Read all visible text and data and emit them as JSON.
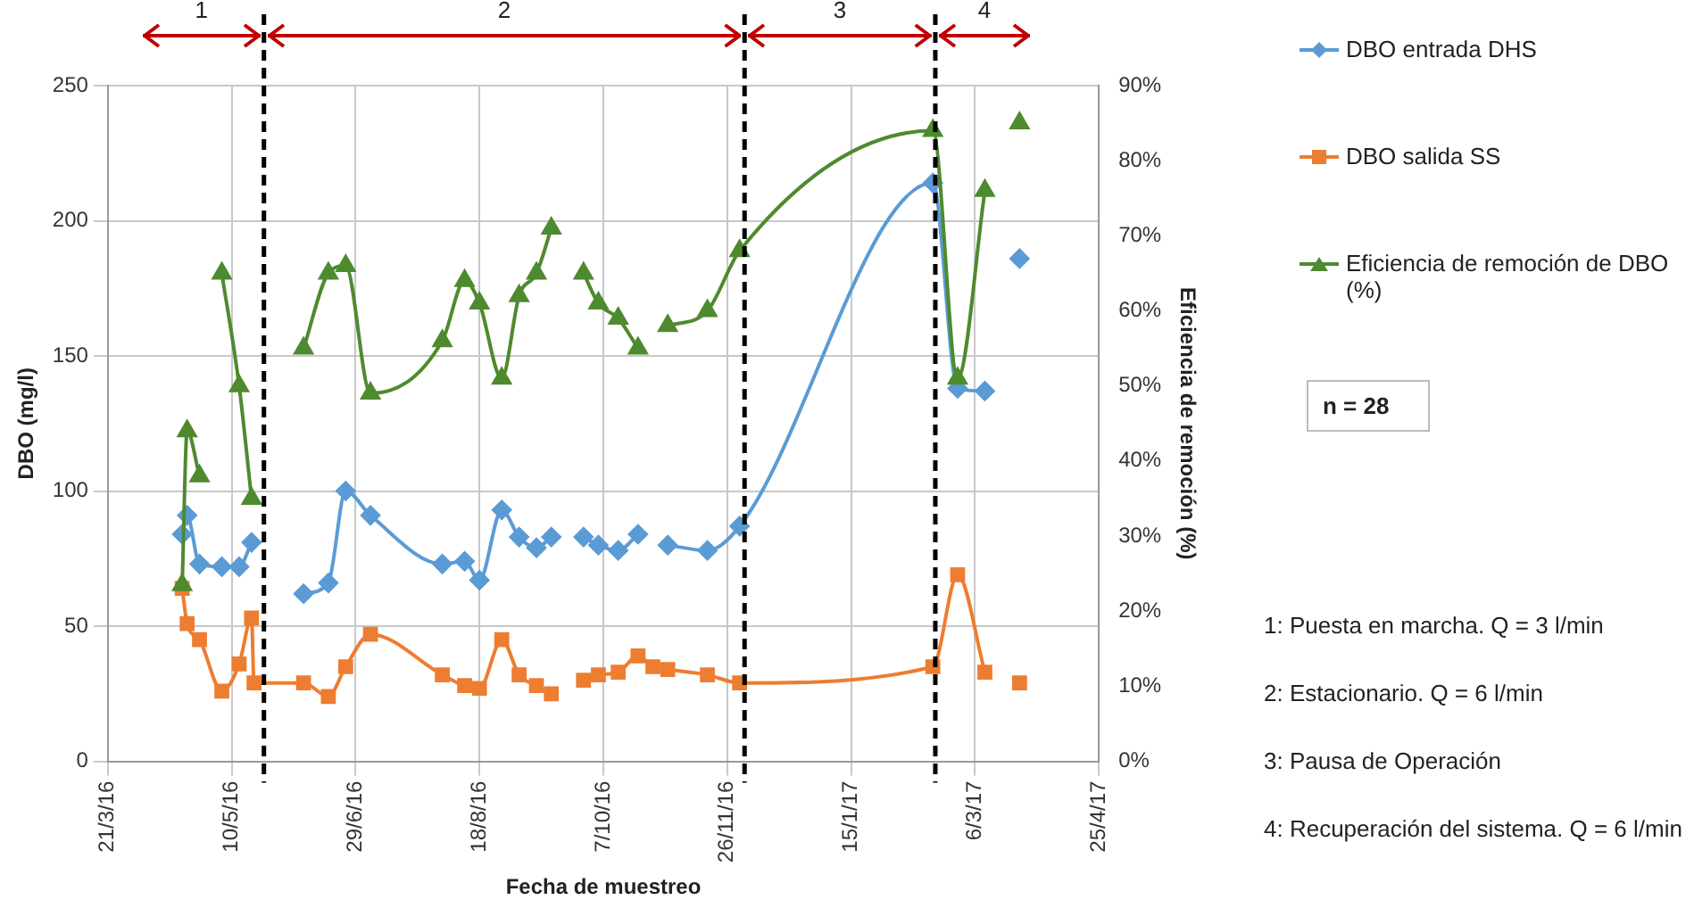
{
  "chart_data": {
    "type": "line",
    "xlabel": "Fecha de muestreo",
    "ylabel": "DBO (mg/l)",
    "y2label": "Eficiencia de remoción (%)",
    "xlim": [
      "2016-03-21",
      "2017-04-25"
    ],
    "xticks": [
      {
        "value": "2016-03-21",
        "label": "21/3/16"
      },
      {
        "value": "2016-05-10",
        "label": "10/5/16"
      },
      {
        "value": "2016-06-29",
        "label": "29/6/16"
      },
      {
        "value": "2016-08-18",
        "label": "18/8/16"
      },
      {
        "value": "2016-10-07",
        "label": "7/10/16"
      },
      {
        "value": "2016-11-26",
        "label": "26/11/16"
      },
      {
        "value": "2017-01-15",
        "label": "15/1/17"
      },
      {
        "value": "2017-03-06",
        "label": "6/3/17"
      },
      {
        "value": "2017-04-25",
        "label": "25/4/17"
      }
    ],
    "ylim": [
      0,
      250
    ],
    "yticks": [
      0,
      50,
      100,
      150,
      200,
      250
    ],
    "y2lim": [
      0,
      90
    ],
    "y2ticks": [
      {
        "value": 0,
        "label": "0%"
      },
      {
        "value": 10,
        "label": "10%"
      },
      {
        "value": 20,
        "label": "20%"
      },
      {
        "value": 30,
        "label": "30%"
      },
      {
        "value": 40,
        "label": "40%"
      },
      {
        "value": 50,
        "label": "50%"
      },
      {
        "value": 60,
        "label": "60%"
      },
      {
        "value": 70,
        "label": "70%"
      },
      {
        "value": 80,
        "label": "80%"
      },
      {
        "value": 90,
        "label": "90%"
      }
    ],
    "grid": true,
    "legend": "right",
    "series": [
      {
        "name": "DBO entrada DHS",
        "color": "#5b9bd5",
        "marker": "diamond",
        "x": [
          "2016-04-20",
          "2016-04-22",
          "2016-04-27",
          "2016-05-06",
          "2016-05-13",
          "2016-05-18"
        ],
        "values": [
          84,
          91,
          73,
          72,
          72,
          81
        ]
      },
      {
        "color": "#5b9bd5",
        "marker": "diamond",
        "x": [
          "2016-06-08",
          "2016-06-18",
          "2016-06-25",
          "2016-07-05",
          "2016-08-03",
          "2016-08-12",
          "2016-08-18",
          "2016-08-27",
          "2016-09-03",
          "2016-09-10",
          "2016-09-16"
        ],
        "values": [
          62,
          66,
          100,
          91,
          73,
          74,
          67,
          93,
          83,
          79,
          83
        ]
      },
      {
        "color": "#5b9bd5",
        "marker": "diamond",
        "x": [
          "2016-09-29",
          "2016-10-05",
          "2016-10-13",
          "2016-10-21"
        ],
        "values": [
          83,
          80,
          78,
          84
        ]
      },
      {
        "color": "#5b9bd5",
        "marker": "diamond",
        "x": [
          "2016-11-02",
          "2016-11-18",
          "2016-12-01",
          "2017-02-17",
          "2017-02-27",
          "2017-03-10"
        ],
        "values": [
          80,
          78,
          87,
          214,
          138,
          137
        ]
      },
      {
        "color": "#5b9bd5",
        "marker": "diamond",
        "x": [
          "2017-03-24"
        ],
        "values": [
          186
        ]
      },
      {
        "name": "DBO salida SS",
        "color": "#ed7d31",
        "marker": "square",
        "x": [
          "2016-04-20",
          "2016-04-22",
          "2016-04-27",
          "2016-05-06",
          "2016-05-13",
          "2016-05-18",
          "2016-05-19",
          "2016-06-08",
          "2016-06-18",
          "2016-06-25",
          "2016-07-05",
          "2016-08-03",
          "2016-08-12",
          "2016-08-18",
          "2016-08-27",
          "2016-09-03",
          "2016-09-10",
          "2016-09-16"
        ],
        "values": [
          64,
          51,
          45,
          26,
          36,
          53,
          29,
          29,
          24,
          35,
          47,
          32,
          28,
          27,
          45,
          32,
          28,
          25
        ]
      },
      {
        "color": "#ed7d31",
        "marker": "square",
        "x": [
          "2016-09-29",
          "2016-10-05",
          "2016-10-13",
          "2016-10-21",
          "2016-10-27",
          "2016-11-02",
          "2016-11-18",
          "2016-12-01",
          "2017-02-17",
          "2017-02-27",
          "2017-03-10"
        ],
        "values": [
          30,
          32,
          33,
          39,
          35,
          34,
          32,
          29,
          35,
          69,
          33
        ]
      },
      {
        "color": "#ed7d31",
        "marker": "square",
        "x": [
          "2017-03-24"
        ],
        "values": [
          29
        ]
      },
      {
        "name": "Eficiencia de remoción de DBO (%)",
        "color": "#4e8a2e",
        "marker": "triangle",
        "axis": "y2",
        "x": [
          "2016-04-20",
          "2016-04-22",
          "2016-04-27"
        ],
        "values": [
          23.5,
          44,
          38
        ]
      },
      {
        "color": "#4e8a2e",
        "marker": "triangle",
        "axis": "y2",
        "x": [
          "2016-05-06",
          "2016-05-13",
          "2016-05-18"
        ],
        "values": [
          65,
          50,
          35
        ]
      },
      {
        "color": "#4e8a2e",
        "marker": "triangle",
        "axis": "y2",
        "x": [
          "2016-06-08",
          "2016-06-18",
          "2016-06-25",
          "2016-07-05",
          "2016-08-03",
          "2016-08-12",
          "2016-08-18",
          "2016-08-27",
          "2016-09-03",
          "2016-09-10",
          "2016-09-16"
        ],
        "values": [
          55,
          65,
          66,
          49,
          56,
          64,
          61,
          51,
          62,
          65,
          71
        ]
      },
      {
        "color": "#4e8a2e",
        "marker": "triangle",
        "axis": "y2",
        "x": [
          "2016-09-29",
          "2016-10-05",
          "2016-10-13",
          "2016-10-21"
        ],
        "values": [
          65,
          61,
          59,
          55
        ]
      },
      {
        "color": "#4e8a2e",
        "marker": "triangle",
        "axis": "y2",
        "x": [
          "2016-11-02",
          "2016-11-18",
          "2016-12-01",
          "2017-02-17",
          "2017-02-27",
          "2017-03-10"
        ],
        "values": [
          58,
          60,
          68,
          84,
          51,
          76
        ]
      },
      {
        "color": "#4e8a2e",
        "marker": "triangle",
        "axis": "y2",
        "x": [
          "2017-03-24"
        ],
        "values": [
          85
        ]
      }
    ],
    "ref_lines": [
      {
        "axis": "x",
        "value": "2016-05-23",
        "color": "#000000",
        "line_style": "dashed"
      },
      {
        "axis": "x",
        "value": "2016-12-03",
        "color": "#000000",
        "line_style": "dashed"
      },
      {
        "axis": "x",
        "value": "2017-02-18",
        "color": "#000000",
        "line_style": "dashed"
      }
    ],
    "annotations": [
      "1",
      "2",
      "3",
      "4",
      "n = 28",
      "1: Puesta en marcha. Q = 3 l/min",
      "2: Estacionario. Q = 6 l/min",
      "3: Pausa de Operación",
      "4: Recuperación del sistema. Q = 6 l/min"
    ]
  }
}
